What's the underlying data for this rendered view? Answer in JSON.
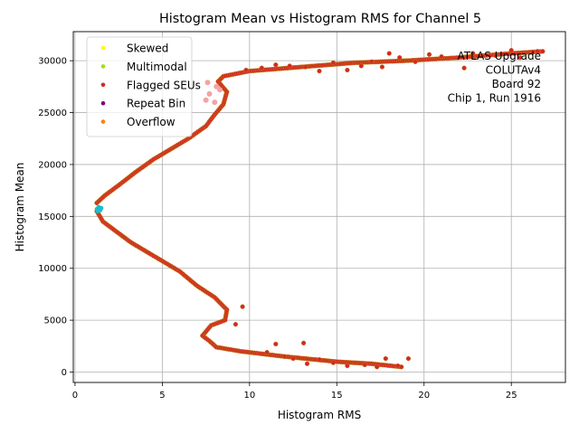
{
  "chart_data": {
    "type": "scatter",
    "title": "Histogram Mean vs Histogram RMS for Channel 5",
    "xlabel": "Histogram RMS",
    "ylabel": "Histogram Mean",
    "xlim": [
      -0.1,
      28.1
    ],
    "ylim": [
      -1000,
      32800
    ],
    "xticks": [
      0,
      5,
      10,
      15,
      20,
      25
    ],
    "yticks": [
      0,
      5000,
      10000,
      15000,
      20000,
      25000,
      30000
    ],
    "xtick_labels": [
      "0",
      "5",
      "10",
      "15",
      "20",
      "25"
    ],
    "ytick_labels": [
      "0",
      "5000",
      "10000",
      "15000",
      "20000",
      "25000",
      "30000"
    ],
    "grid": true,
    "legend_position": "top-left",
    "legend": [
      {
        "name": "Skewed",
        "color": "#ffff00"
      },
      {
        "name": "Multimodal",
        "color": "#99e600"
      },
      {
        "name": "Flagged SEUs",
        "color": "#d62728"
      },
      {
        "name": "Repeat Bin",
        "color": "#800080"
      },
      {
        "name": "Overflow",
        "color": "#ff7f0e"
      }
    ],
    "annotation": [
      "ATLAS Upgrade",
      "COLUTAv4",
      "Board 92",
      "Chip 1, Run 1916"
    ],
    "colors": {
      "main_series": "#d62728",
      "edge": "#b8860b",
      "dense_band": "#f4a3a3",
      "min_cluster": "#17becf"
    },
    "series": [
      {
        "kind": "curve",
        "points": [
          [
            1.25,
            15500
          ],
          [
            1.6,
            14500
          ],
          [
            2.4,
            13500
          ],
          [
            3.2,
            12500
          ],
          [
            4.0,
            11700
          ],
          [
            5.0,
            10700
          ],
          [
            6.0,
            9700
          ],
          [
            7.0,
            8300
          ],
          [
            8.0,
            7200
          ],
          [
            8.7,
            6000
          ],
          [
            8.6,
            5000
          ],
          [
            7.8,
            4500
          ],
          [
            7.3,
            3500
          ],
          [
            7.7,
            3000
          ],
          [
            8.1,
            2400
          ],
          [
            9.5,
            2000
          ],
          [
            12.0,
            1500
          ],
          [
            15.0,
            1000
          ],
          [
            17.0,
            800
          ],
          [
            18.7,
            500
          ]
        ]
      },
      {
        "kind": "curve",
        "points": [
          [
            1.25,
            16300
          ],
          [
            1.7,
            17000
          ],
          [
            2.5,
            18000
          ],
          [
            3.5,
            19300
          ],
          [
            4.5,
            20500
          ],
          [
            5.5,
            21500
          ],
          [
            6.5,
            22500
          ],
          [
            7.5,
            23700
          ],
          [
            8.0,
            24800
          ],
          [
            8.5,
            25800
          ],
          [
            8.7,
            27000
          ],
          [
            8.2,
            28000
          ],
          [
            8.5,
            28500
          ],
          [
            10.0,
            29000
          ],
          [
            13.0,
            29400
          ],
          [
            16.0,
            29800
          ],
          [
            19.0,
            30000
          ],
          [
            22.0,
            30300
          ],
          [
            25.0,
            30700
          ],
          [
            26.8,
            30900
          ]
        ]
      },
      {
        "kind": "scatter",
        "points": [
          [
            9.2,
            4600
          ],
          [
            9.6,
            6300
          ],
          [
            11.0,
            1900
          ],
          [
            11.5,
            2700
          ],
          [
            12.0,
            1500
          ],
          [
            12.5,
            1300
          ],
          [
            13.1,
            2800
          ],
          [
            13.3,
            800
          ],
          [
            14.0,
            1200
          ],
          [
            14.8,
            900
          ],
          [
            15.6,
            600
          ],
          [
            16.6,
            700
          ],
          [
            17.3,
            500
          ],
          [
            17.8,
            1300
          ],
          [
            18.5,
            600
          ],
          [
            19.1,
            1300
          ],
          [
            9.8,
            29100
          ],
          [
            10.7,
            29300
          ],
          [
            11.5,
            29600
          ],
          [
            12.3,
            29500
          ],
          [
            13.2,
            29400
          ],
          [
            14.0,
            29000
          ],
          [
            14.8,
            29800
          ],
          [
            15.6,
            29100
          ],
          [
            16.4,
            29500
          ],
          [
            17.0,
            29900
          ],
          [
            17.6,
            29400
          ],
          [
            18.0,
            30700
          ],
          [
            18.6,
            30300
          ],
          [
            19.5,
            29900
          ],
          [
            20.3,
            30600
          ],
          [
            21.0,
            30400
          ],
          [
            22.3,
            29300
          ],
          [
            22.8,
            30700
          ],
          [
            24.1,
            30500
          ],
          [
            25.0,
            31000
          ],
          [
            25.5,
            30300
          ],
          [
            26.5,
            30900
          ]
        ]
      },
      {
        "kind": "scatter",
        "points": [
          [
            7.7,
            26800
          ],
          [
            8.1,
            27500
          ],
          [
            7.5,
            26200
          ],
          [
            8.0,
            26000
          ],
          [
            7.6,
            27900
          ],
          [
            8.3,
            27200
          ]
        ]
      },
      {
        "kind": "scatter",
        "points": [
          [
            1.25,
            15700
          ],
          [
            1.35,
            15900
          ],
          [
            1.5,
            15800
          ],
          [
            1.3,
            15500
          ],
          [
            1.45,
            15600
          ]
        ]
      }
    ]
  }
}
